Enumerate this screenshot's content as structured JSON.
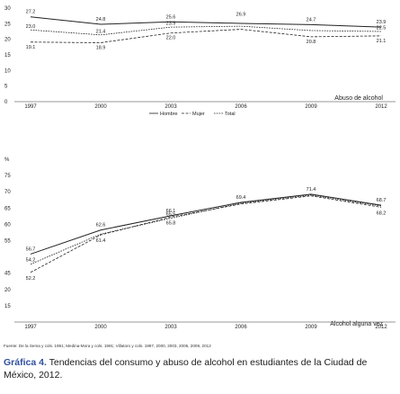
{
  "chart_data": [
    {
      "type": "line",
      "title": "",
      "sublabel": "Abuso de alcohol",
      "x": [
        "1997",
        "2000",
        "2003",
        "2006",
        "2009",
        "2012"
      ],
      "ylim": [
        0,
        30
      ],
      "yticks": [
        "0",
        "5",
        "10",
        "15",
        "20",
        "25",
        "30"
      ],
      "legend": {
        "position": "bottom",
        "entries": [
          "Hombre",
          "Mujer",
          "Total"
        ]
      },
      "series": [
        {
          "name": "Hombre",
          "color": "#222222",
          "style": "solid",
          "values": [
            27.2,
            24.8,
            25.6,
            25.1,
            24.7,
            23.9
          ],
          "labels": [
            "27.2",
            "24.8",
            "25.6",
            "",
            "24.7",
            "23.9"
          ]
        },
        {
          "name": "Mujer",
          "color": "#222222",
          "style": "dashed",
          "values": [
            19.1,
            18.9,
            22.0,
            23.2,
            20.8,
            21.1
          ],
          "labels": [
            "19.1",
            "18.9",
            "22.0",
            "",
            "20.8",
            "21.1"
          ]
        },
        {
          "name": "Total",
          "color": "#222222",
          "style": "dashed",
          "values": [
            23.0,
            21.4,
            23.9,
            24.2,
            22.8,
            22.5
          ],
          "labels": [
            "23.0",
            "21.4",
            "23.9",
            "",
            "",
            "22.5"
          ]
        }
      ],
      "annotations": [
        {
          "x": "2006",
          "y": 26.9,
          "text": "26.9"
        }
      ]
    },
    {
      "type": "line",
      "title": "",
      "sublabel": "Alcohol alguna vez",
      "x": [
        "1997",
        "2000",
        "2003",
        "2006",
        "2009",
        "2012"
      ],
      "ylim": [
        40,
        80
      ],
      "yticks": [
        "",
        "15",
        "20",
        "45",
        "",
        "55",
        "60",
        "65",
        "70",
        "75",
        "%"
      ],
      "series": [
        {
          "name": "Hombre",
          "color": "#222222",
          "style": "solid",
          "values": [
            56.7,
            62.6,
            66.1,
            69.4,
            71.4,
            68.7
          ],
          "labels": [
            "56.7",
            "62.6",
            "66.1",
            "69.4",
            "71.4",
            "68.7"
          ]
        },
        {
          "name": "Mujer",
          "color": "#222222",
          "style": "dashed",
          "values": [
            52.2,
            61.4,
            65.8,
            69.0,
            71.0,
            68.2
          ],
          "labels": [
            "52.2",
            "61.4",
            "65.8",
            "",
            "",
            "68.2"
          ]
        },
        {
          "name": "Total",
          "color": "#222222",
          "style": "dashed",
          "values": [
            54.2,
            61.6,
            65.5,
            69.2,
            71.2,
            68.5
          ],
          "labels": [
            "54.2",
            "",
            "65.5",
            "",
            "",
            ""
          ]
        }
      ]
    }
  ],
  "source": "Fuente: De la Sema y cols. 1991; Medina-Mora y cols. 1991; Villatoro y cols. 1997, 2000, 2003, 2006, 2009, 2012",
  "caption": {
    "label": "Gráfica 4.",
    "text": "Tendencias del consumo y abuso de alcohol en estudiantes de la Ciudad de México, 2012."
  }
}
